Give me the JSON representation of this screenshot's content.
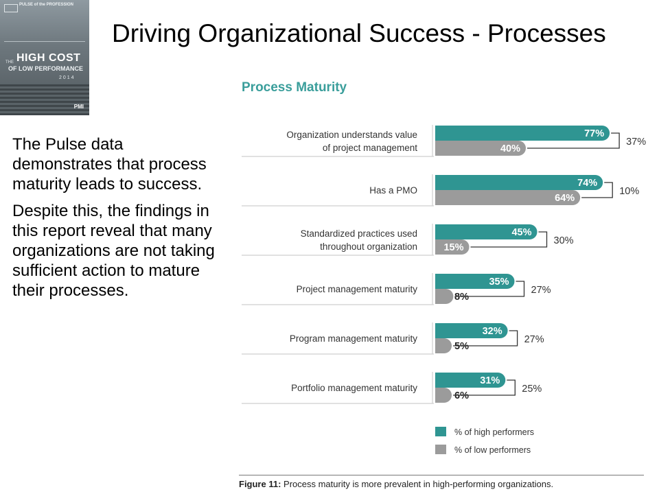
{
  "slide": {
    "title": "Driving Organizational Success - Processes",
    "body": [
      "The Pulse data demonstrates that process maturity leads to success.",
      "Despite this, the findings in this report reveal that many organizations are not taking sufficient action to mature their processes."
    ]
  },
  "cover": {
    "brand": "PULSE of the PROFESSION",
    "the": "THE",
    "line1": "HIGH COST",
    "line2": "OF LOW PERFORMANCE",
    "year": "2014",
    "publisher": "PMI"
  },
  "figure": {
    "label": "Figure 11:",
    "text": " Process maturity is more prevalent in high-performing organizations."
  },
  "chart_data": {
    "type": "bar",
    "title": "Process Maturity",
    "categories": [
      [
        "Organization understands value",
        "of project management"
      ],
      [
        "Has a PMO"
      ],
      [
        "Standardized practices used",
        "throughout organization"
      ],
      [
        "Project management maturity"
      ],
      [
        "Program management maturity"
      ],
      [
        "Portfolio management maturity"
      ]
    ],
    "series": [
      {
        "name": "% of high performers",
        "color": "#2f9592",
        "values": [
          77,
          74,
          45,
          35,
          32,
          31
        ]
      },
      {
        "name": "% of low performers",
        "color": "#9b9b9b",
        "values": [
          40,
          64,
          15,
          8,
          5,
          6
        ]
      }
    ],
    "differences": [
      37,
      10,
      30,
      27,
      27,
      25
    ],
    "value_suffix": "%",
    "ylim": [
      0,
      100
    ]
  }
}
